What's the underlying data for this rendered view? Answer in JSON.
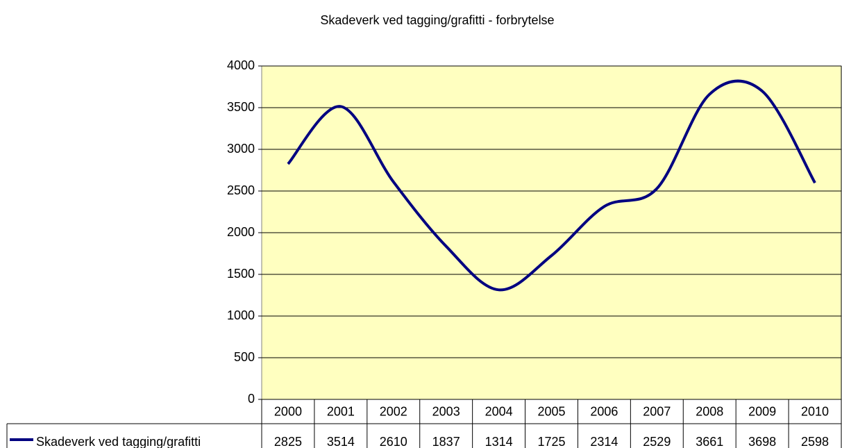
{
  "chart_data": {
    "type": "line",
    "title": "Skadeverk ved tagging/grafitti - forbrytelse",
    "categories": [
      "2000",
      "2001",
      "2002",
      "2003",
      "2004",
      "2005",
      "2006",
      "2007",
      "2008",
      "2009",
      "2010"
    ],
    "series": [
      {
        "name": "Skadeverk ved tagging/grafitti",
        "color": "#000080",
        "values": [
          2825,
          3514,
          2610,
          1837,
          1314,
          1725,
          2314,
          2529,
          3661,
          3698,
          2598
        ]
      }
    ],
    "ylim": [
      0,
      4000
    ],
    "yticks": [
      0,
      500,
      1000,
      1500,
      2000,
      2500,
      3000,
      3500,
      4000
    ],
    "grid": true,
    "smooth": true,
    "plot_background": "#ffffc0"
  }
}
